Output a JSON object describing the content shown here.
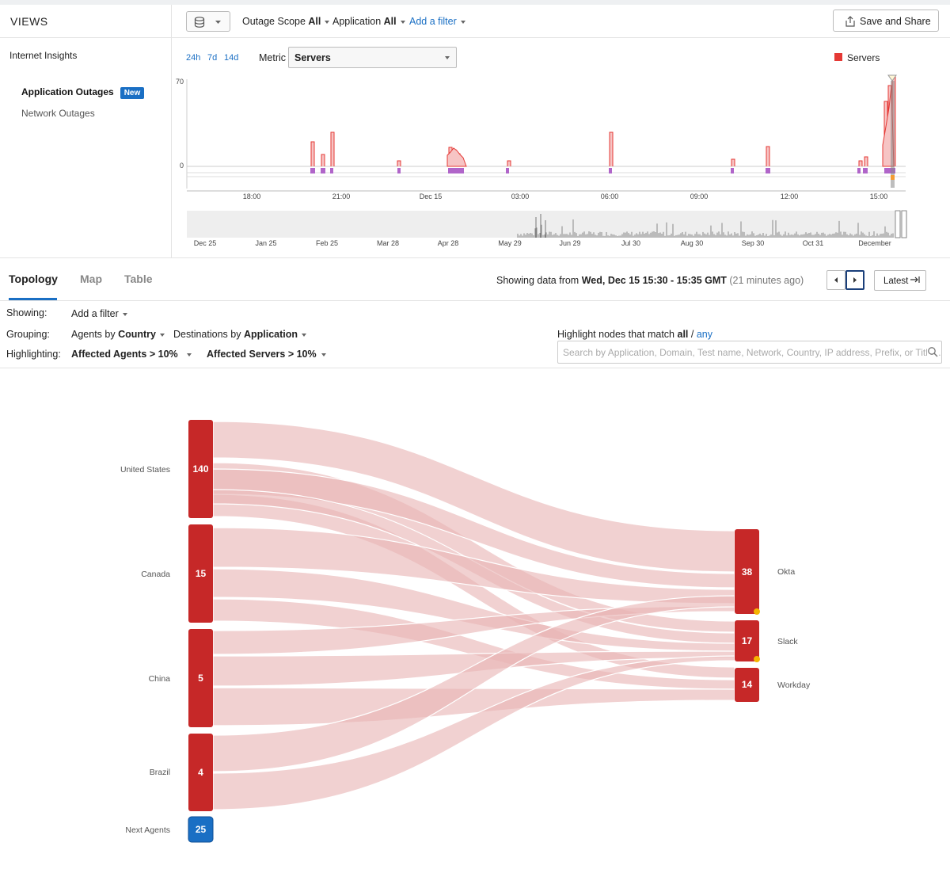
{
  "sidebar": {
    "title": "VIEWS",
    "group": "Internet Insights",
    "items": [
      {
        "label": "Application Outages",
        "badge": "New"
      },
      {
        "label": "Network Outages"
      }
    ]
  },
  "toolbar": {
    "filters": [
      {
        "label": "Outage Scope",
        "value": "All"
      },
      {
        "label": "Application",
        "value": "All"
      }
    ],
    "add_filter": "Add a filter",
    "save_share": "Save and Share"
  },
  "chart": {
    "ranges": [
      "24h",
      "7d",
      "14d"
    ],
    "metric_label": "Metric",
    "metric_value": "Servers",
    "legend": "Servers",
    "legend_color": "#e53935",
    "y_ticks": [
      "70",
      "0"
    ],
    "x_ticks": [
      "18:00",
      "21:00",
      "Dec 15",
      "03:00",
      "06:00",
      "09:00",
      "12:00",
      "15:00"
    ],
    "overview_ticks": [
      "Dec 25",
      "Jan 25",
      "Feb 25",
      "Mar 28",
      "Apr 28",
      "May 29",
      "Jun 29",
      "Jul 30",
      "Aug 30",
      "Sep 30",
      "Oct 31",
      "December"
    ]
  },
  "tabs": [
    {
      "label": "Topology",
      "active": true
    },
    {
      "label": "Map"
    },
    {
      "label": "Table"
    }
  ],
  "time_info": {
    "prefix": "Showing data from",
    "range": "Wed, Dec 15 15:30 - 15:35 GMT",
    "ago": "(21 minutes ago)",
    "latest": "Latest"
  },
  "filters": {
    "showing_label": "Showing:",
    "showing_add": "Add a filter",
    "grouping_label": "Grouping:",
    "group_agents_prefix": "Agents by",
    "group_agents_value": "Country",
    "group_dest_prefix": "Destinations by",
    "group_dest_value": "Application",
    "highlighting_label": "Highlighting:",
    "hl_agents": "Affected Agents > 10%",
    "hl_servers": "Affected Servers > 10%",
    "highlight_match_prefix": "Highlight nodes that match",
    "highlight_all": "all",
    "highlight_sep": "/",
    "highlight_any": "any",
    "search_placeholder": "Search by Application, Domain, Test name, Network, Country, IP address, Prefix, or Title..."
  },
  "topology": {
    "sources": [
      {
        "name": "United States",
        "value": "140"
      },
      {
        "name": "Canada",
        "value": "15"
      },
      {
        "name": "China",
        "value": "5"
      },
      {
        "name": "Brazil",
        "value": "4"
      },
      {
        "name": "Next Agents",
        "value": "25"
      }
    ],
    "targets": [
      {
        "name": "Okta",
        "value": "38"
      },
      {
        "name": "Slack",
        "value": "17"
      },
      {
        "name": "Workday",
        "value": "14"
      }
    ],
    "node_color": "#c62828",
    "next_color": "#1a6fc4",
    "link_color": "#e8b4b4"
  }
}
